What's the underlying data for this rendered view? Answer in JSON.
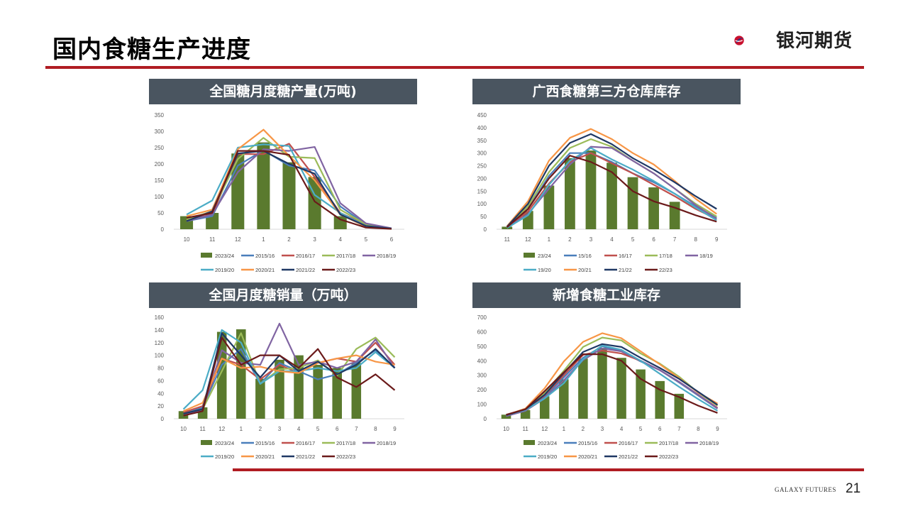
{
  "page": {
    "title": "国内食糖生产进度",
    "brand": "银河期货",
    "footer_brand": "GALAXY FUTURES",
    "page_number": "21",
    "colors": {
      "accent_red": "#b01c22",
      "title_bar": "#4a5560"
    }
  },
  "chart_data": [
    {
      "type": "bar+line",
      "title": "全国糖月度糖产量(万吨)",
      "categories": [
        "10",
        "11",
        "12",
        "1",
        "2",
        "3",
        "4",
        "5",
        "6"
      ],
      "ylim": [
        0,
        350
      ],
      "yticks": [
        0,
        50,
        100,
        150,
        200,
        250,
        300,
        350
      ],
      "grid": false,
      "legend_position": "bottom",
      "bar_series": {
        "name": "2023/24",
        "color": "#5a7a2e",
        "values": [
          40,
          50,
          232,
          266,
          205,
          160,
          40,
          null,
          null
        ]
      },
      "series": [
        {
          "name": "2015/16",
          "color": "#4a7ebb",
          "values": [
            25,
            40,
            195,
            242,
            195,
            180,
            70,
            15,
            2
          ]
        },
        {
          "name": "2016/17",
          "color": "#c0504d",
          "values": [
            30,
            45,
            230,
            230,
            262,
            160,
            50,
            15,
            2
          ]
        },
        {
          "name": "2017/18",
          "color": "#9bbb59",
          "values": [
            30,
            55,
            215,
            280,
            222,
            218,
            60,
            15,
            2
          ]
        },
        {
          "name": "2018/19",
          "color": "#8064a2",
          "values": [
            25,
            45,
            175,
            245,
            240,
            252,
            80,
            18,
            3
          ]
        },
        {
          "name": "2019/20",
          "color": "#4bacc6",
          "values": [
            45,
            88,
            250,
            260,
            255,
            105,
            50,
            10,
            2
          ]
        },
        {
          "name": "2020/21",
          "color": "#f79646",
          "values": [
            40,
            60,
            245,
            305,
            225,
            150,
            45,
            8,
            1
          ]
        },
        {
          "name": "2021/22",
          "color": "#1f3864",
          "values": [
            25,
            55,
            232,
            240,
            200,
            170,
            45,
            10,
            2
          ]
        },
        {
          "name": "2022/23",
          "color": "#6b1a1a",
          "values": [
            35,
            50,
            240,
            240,
            228,
            85,
            30,
            5,
            1
          ]
        }
      ]
    },
    {
      "type": "bar+line",
      "title": "广西食糖第三方仓库库存",
      "categories": [
        "11",
        "12",
        "1",
        "2",
        "3",
        "4",
        "5",
        "6",
        "7",
        "8",
        "9"
      ],
      "ylim": [
        0,
        450
      ],
      "yticks": [
        0,
        50,
        100,
        150,
        200,
        250,
        300,
        350,
        400,
        450
      ],
      "grid": false,
      "legend_position": "bottom",
      "bar_series": {
        "name": "23/24",
        "color": "#5a7a2e",
        "values": [
          10,
          72,
          172,
          280,
          310,
          262,
          205,
          165,
          108,
          null,
          null
        ]
      },
      "series": [
        {
          "name": "15/16",
          "color": "#4a7ebb",
          "values": [
            8,
            80,
            210,
            300,
            300,
            265,
            220,
            185,
            140,
            90,
            45
          ]
        },
        {
          "name": "16/17",
          "color": "#c0504d",
          "values": [
            8,
            70,
            180,
            265,
            300,
            260,
            220,
            175,
            130,
            80,
            40
          ]
        },
        {
          "name": "17/18",
          "color": "#9bbb59",
          "values": [
            10,
            90,
            225,
            320,
            355,
            325,
            270,
            220,
            160,
            100,
            50
          ]
        },
        {
          "name": "18/19",
          "color": "#8064a2",
          "values": [
            6,
            60,
            160,
            255,
            325,
            320,
            270,
            220,
            160,
            95,
            40
          ]
        },
        {
          "name": "19/20",
          "color": "#4bacc6",
          "values": [
            5,
            55,
            175,
            270,
            320,
            275,
            235,
            190,
            140,
            85,
            35
          ]
        },
        {
          "name": "20/21",
          "color": "#f79646",
          "values": [
            12,
            110,
            270,
            360,
            395,
            355,
            300,
            255,
            190,
            120,
            60
          ]
        },
        {
          "name": "21/22",
          "color": "#1f3864",
          "values": [
            10,
            100,
            250,
            340,
            375,
            335,
            280,
            235,
            185,
            130,
            80
          ]
        },
        {
          "name": "22/23",
          "color": "#6b1a1a",
          "values": [
            8,
            80,
            200,
            290,
            265,
            225,
            150,
            110,
            85,
            55,
            30
          ]
        }
      ]
    },
    {
      "type": "bar+line",
      "title": "全国月度糖销量（万吨）",
      "categories": [
        "10",
        "11",
        "12",
        "1",
        "2",
        "3",
        "4",
        "5",
        "6",
        "7",
        "8",
        "9"
      ],
      "ylim": [
        0,
        160
      ],
      "yticks": [
        0,
        20,
        40,
        60,
        80,
        100,
        120,
        140,
        160
      ],
      "grid": false,
      "legend_position": "bottom",
      "bar_series": {
        "name": "2023/24",
        "color": "#5a7a2e",
        "values": [
          12,
          18,
          137,
          141,
          63,
          93,
          100,
          85,
          80,
          88,
          null,
          null
        ]
      },
      "series": [
        {
          "name": "2015/16",
          "color": "#4a7ebb",
          "values": [
            8,
            18,
            85,
            110,
            55,
            88,
            75,
            62,
            70,
            88,
            108,
            80
          ]
        },
        {
          "name": "2016/17",
          "color": "#c0504d",
          "values": [
            10,
            20,
            95,
            85,
            62,
            85,
            72,
            88,
            95,
            90,
            120,
            85
          ]
        },
        {
          "name": "2017/18",
          "color": "#9bbb59",
          "values": [
            8,
            15,
            75,
            135,
            55,
            78,
            80,
            92,
            68,
            110,
            128,
            97
          ]
        },
        {
          "name": "2018/19",
          "color": "#8064a2",
          "values": [
            5,
            15,
            108,
            88,
            85,
            150,
            85,
            90,
            80,
            90,
            125,
            80
          ]
        },
        {
          "name": "2019/20",
          "color": "#4bacc6",
          "values": [
            15,
            45,
            140,
            120,
            55,
            75,
            75,
            80,
            75,
            80,
            105,
            80
          ]
        },
        {
          "name": "2020/21",
          "color": "#f79646",
          "values": [
            12,
            25,
            95,
            80,
            82,
            75,
            72,
            88,
            95,
            100,
            90,
            85
          ]
        },
        {
          "name": "2021/22",
          "color": "#1f3864",
          "values": [
            8,
            15,
            135,
            100,
            65,
            100,
            75,
            90,
            70,
            85,
            110,
            80
          ]
        },
        {
          "name": "2022/23",
          "color": "#6b1a1a",
          "values": [
            5,
            12,
            128,
            85,
            100,
            100,
            80,
            110,
            65,
            50,
            70,
            45
          ]
        }
      ]
    },
    {
      "type": "bar+line",
      "title": "新增食糖工业库存",
      "categories": [
        "10",
        "11",
        "12",
        "1",
        "2",
        "3",
        "4",
        "5",
        "6",
        "7",
        "8",
        "9"
      ],
      "ylim": [
        0,
        700
      ],
      "yticks": [
        0,
        100,
        200,
        300,
        400,
        500,
        600,
        700
      ],
      "grid": false,
      "legend_position": "bottom",
      "bar_series": {
        "name": "2023/24",
        "color": "#5a7a2e",
        "values": [
          28,
          60,
          155,
          272,
          415,
          490,
          420,
          340,
          260,
          172,
          null,
          null
        ]
      },
      "series": [
        {
          "name": "2015/16",
          "color": "#4a7ebb",
          "values": [
            20,
            55,
            150,
            285,
            420,
            500,
            465,
            395,
            335,
            250,
            160,
            70
          ]
        },
        {
          "name": "2016/17",
          "color": "#c0504d",
          "values": [
            25,
            60,
            160,
            300,
            440,
            470,
            450,
            400,
            335,
            255,
            165,
            75
          ]
        },
        {
          "name": "2017/18",
          "color": "#9bbb59",
          "values": [
            20,
            60,
            180,
            330,
            495,
            560,
            540,
            450,
            380,
            290,
            180,
            90
          ]
        },
        {
          "name": "2018/19",
          "color": "#8064a2",
          "values": [
            18,
            55,
            140,
            265,
            405,
            485,
            465,
            400,
            335,
            255,
            165,
            70
          ]
        },
        {
          "name": "2019/20",
          "color": "#4bacc6",
          "values": [
            25,
            60,
            140,
            245,
            410,
            505,
            475,
            400,
            310,
            220,
            135,
            55
          ]
        },
        {
          "name": "2020/21",
          "color": "#f79646",
          "values": [
            25,
            70,
            210,
            395,
            530,
            590,
            555,
            465,
            375,
            280,
            180,
            105
          ]
        },
        {
          "name": "2021/22",
          "color": "#1f3864",
          "values": [
            25,
            65,
            165,
            315,
            460,
            515,
            495,
            420,
            350,
            275,
            185,
            95
          ]
        },
        {
          "name": "2022/23",
          "color": "#6b1a1a",
          "values": [
            28,
            65,
            190,
            320,
            445,
            445,
            400,
            275,
            200,
            150,
            90,
            40
          ]
        }
      ]
    }
  ]
}
